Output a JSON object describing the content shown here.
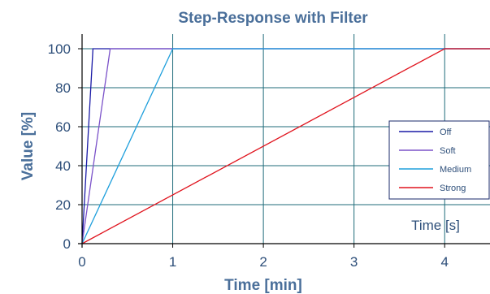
{
  "chart_data": {
    "type": "line",
    "title": "Step-Response with Filter",
    "xlabel": "Time [min]",
    "ylabel": "Value [%]",
    "secondary_x_label": "Time [s]",
    "xlim": [
      0,
      4.5
    ],
    "ylim": [
      0,
      100
    ],
    "x_ticks": [
      "0",
      "1",
      "2",
      "3",
      "4"
    ],
    "y_ticks": [
      "0",
      "20",
      "40",
      "60",
      "80",
      "100"
    ],
    "grid": true,
    "legend_position": "right",
    "series": [
      {
        "name": "Off",
        "color": "#1a1aa6",
        "x": [
          0,
          0.12,
          4.5
        ],
        "y": [
          0,
          100,
          100
        ]
      },
      {
        "name": "Soft",
        "color": "#7b52c9",
        "x": [
          0,
          0.31,
          4.5
        ],
        "y": [
          0,
          100,
          100
        ]
      },
      {
        "name": "Medium",
        "color": "#1e9fdc",
        "x": [
          0,
          1.0,
          4.5
        ],
        "y": [
          0,
          100,
          100
        ]
      },
      {
        "name": "Strong",
        "color": "#e0141e",
        "x": [
          0,
          4.0,
          4.5
        ],
        "y": [
          0,
          100,
          100
        ]
      }
    ],
    "colors": {
      "grid": "#1f6b7a",
      "axis": "#000000"
    }
  }
}
